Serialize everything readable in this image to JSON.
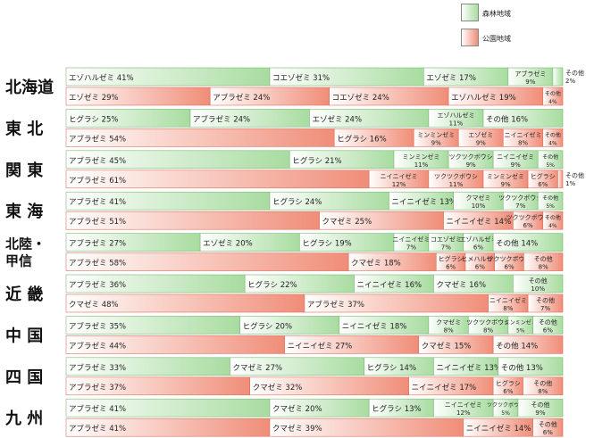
{
  "legend": {
    "forest": {
      "label": "森林地域",
      "color": "#a8dca0"
    },
    "park": {
      "label": "公園地域",
      "color": "#f08d78"
    }
  },
  "chart_data": {
    "type": "bar",
    "orientation": "horizontal",
    "stacked": true,
    "normalized": true,
    "unit": "%",
    "regions": [
      {
        "name": "北海道",
        "forest": [
          {
            "label": "エゾハルゼミ",
            "value": 41
          },
          {
            "label": "コエゾゼミ",
            "value": 31
          },
          {
            "label": "エゾゼミ",
            "value": 17
          },
          {
            "label": "アブラゼミ",
            "value": 9
          },
          {
            "label": "その他",
            "value": 2
          }
        ],
        "park": [
          {
            "label": "エゾゼミ",
            "value": 29
          },
          {
            "label": "アブラゼミ",
            "value": 24
          },
          {
            "label": "コエゾゼミ",
            "value": 24
          },
          {
            "label": "エゾハルゼミ",
            "value": 19
          },
          {
            "label": "その他",
            "value": 4
          }
        ]
      },
      {
        "name": "東 北",
        "forest": [
          {
            "label": "ヒグラシ",
            "value": 25
          },
          {
            "label": "アブラゼミ",
            "value": 24
          },
          {
            "label": "エゾゼミ",
            "value": 24
          },
          {
            "label": "エゾハルゼミ",
            "value": 11
          },
          {
            "label": "その他",
            "value": 16
          }
        ],
        "park": [
          {
            "label": "アブラゼミ",
            "value": 54
          },
          {
            "label": "ヒグラシ",
            "value": 16
          },
          {
            "label": "ミンミンゼミ",
            "value": 9
          },
          {
            "label": "エゾゼミ",
            "value": 9
          },
          {
            "label": "ニイニイゼミ",
            "value": 8
          },
          {
            "label": "その他",
            "value": 4
          }
        ]
      },
      {
        "name": "関 東",
        "forest": [
          {
            "label": "アブラゼミ",
            "value": 45
          },
          {
            "label": "ヒグラシ",
            "value": 21
          },
          {
            "label": "ミンミンゼミ",
            "value": 11
          },
          {
            "label": "ツクツクボウシ",
            "value": 9
          },
          {
            "label": "ニイニイゼミ",
            "value": 9
          },
          {
            "label": "その他",
            "value": 5
          }
        ],
        "park": [
          {
            "label": "アブラゼミ",
            "value": 61
          },
          {
            "label": "ニイニイゼミ",
            "value": 12
          },
          {
            "label": "ツクツクボウシ",
            "value": 11
          },
          {
            "label": "ミンミンゼミ",
            "value": 9
          },
          {
            "label": "ヒグラシ",
            "value": 6
          },
          {
            "label": "その他",
            "value": 1
          }
        ]
      },
      {
        "name": "東 海",
        "forest": [
          {
            "label": "アブラゼミ",
            "value": 41
          },
          {
            "label": "ヒグラシ",
            "value": 24
          },
          {
            "label": "ニイニイゼミ",
            "value": 13
          },
          {
            "label": "クマゼミ",
            "value": 10
          },
          {
            "label": "ツクツクボウシ",
            "value": 7
          },
          {
            "label": "その他",
            "value": 5
          }
        ],
        "park": [
          {
            "label": "アブラゼミ",
            "value": 51
          },
          {
            "label": "クマゼミ",
            "value": 25
          },
          {
            "label": "ニイニイゼミ",
            "value": 14
          },
          {
            "label": "ツクツクボウシ",
            "value": 6
          },
          {
            "label": "その他",
            "value": 4
          }
        ]
      },
      {
        "name": "北陸・甲信",
        "forest": [
          {
            "label": "アブラゼミ",
            "value": 27
          },
          {
            "label": "エゾゼミ",
            "value": 20
          },
          {
            "label": "ヒグラシ",
            "value": 19
          },
          {
            "label": "ニイニイゼミ",
            "value": 7
          },
          {
            "label": "コエゾゼミ",
            "value": 7
          },
          {
            "label": "エゾハルゼミ",
            "value": 6
          },
          {
            "label": "その他",
            "value": 14
          }
        ],
        "park": [
          {
            "label": "アブラゼミ",
            "value": 58
          },
          {
            "label": "クマゼミ",
            "value": 18
          },
          {
            "label": "ヒグラシ",
            "value": 6
          },
          {
            "label": "ヒメハルゼミ",
            "value": 6
          },
          {
            "label": "ツクツクボウシ",
            "value": 6
          },
          {
            "label": "その他",
            "value": 8
          }
        ]
      },
      {
        "name": "近 畿",
        "forest": [
          {
            "label": "アブラゼミ",
            "value": 36
          },
          {
            "label": "ヒグラシ",
            "value": 22
          },
          {
            "label": "ニイニイゼミ",
            "value": 16
          },
          {
            "label": "クマゼミ",
            "value": 16
          },
          {
            "label": "その他",
            "value": 10
          }
        ],
        "park": [
          {
            "label": "クマゼミ",
            "value": 48
          },
          {
            "label": "アブラゼミ",
            "value": 37
          },
          {
            "label": "ニイニイゼミ",
            "value": 8
          },
          {
            "label": "その他",
            "value": 7
          }
        ]
      },
      {
        "name": "中 国",
        "forest": [
          {
            "label": "アブラゼミ",
            "value": 35
          },
          {
            "label": "ヒグラシ",
            "value": 20
          },
          {
            "label": "ニイニイゼミ",
            "value": 18
          },
          {
            "label": "クマゼミ",
            "value": 8
          },
          {
            "label": "ツクツクボウシ",
            "value": 8
          },
          {
            "label": "ミンミンゼミ",
            "value": 5
          },
          {
            "label": "その他",
            "value": 6
          }
        ],
        "park": [
          {
            "label": "アブラゼミ",
            "value": 44
          },
          {
            "label": "ニイニイゼミ",
            "value": 27
          },
          {
            "label": "クマゼミ",
            "value": 15
          },
          {
            "label": "その他",
            "value": 14
          }
        ]
      },
      {
        "name": "四 国",
        "forest": [
          {
            "label": "アブラゼミ",
            "value": 33
          },
          {
            "label": "クマゼミ",
            "value": 27
          },
          {
            "label": "ヒグラシ",
            "value": 14
          },
          {
            "label": "ニイニイゼミ",
            "value": 13
          },
          {
            "label": "その他",
            "value": 13
          }
        ],
        "park": [
          {
            "label": "アブラゼミ",
            "value": 37
          },
          {
            "label": "クマゼミ",
            "value": 32
          },
          {
            "label": "ニイニイゼミ",
            "value": 17
          },
          {
            "label": "ヒグラシ",
            "value": 6
          },
          {
            "label": "その他",
            "value": 8
          }
        ]
      },
      {
        "name": "九 州",
        "forest": [
          {
            "label": "アブラゼミ",
            "value": 41
          },
          {
            "label": "クマゼミ",
            "value": 20
          },
          {
            "label": "ヒグラシ",
            "value": 13
          },
          {
            "label": "ニイニイゼミ",
            "value": 12
          },
          {
            "label": "ツクツクボウシ",
            "value": 5
          },
          {
            "label": "その他",
            "value": 9
          }
        ],
        "park": [
          {
            "label": "アブラゼミ",
            "value": 41
          },
          {
            "label": "クマゼミ",
            "value": 39
          },
          {
            "label": "ニイニイゼミ",
            "value": 14
          },
          {
            "label": "その他",
            "value": 6
          }
        ]
      }
    ]
  }
}
